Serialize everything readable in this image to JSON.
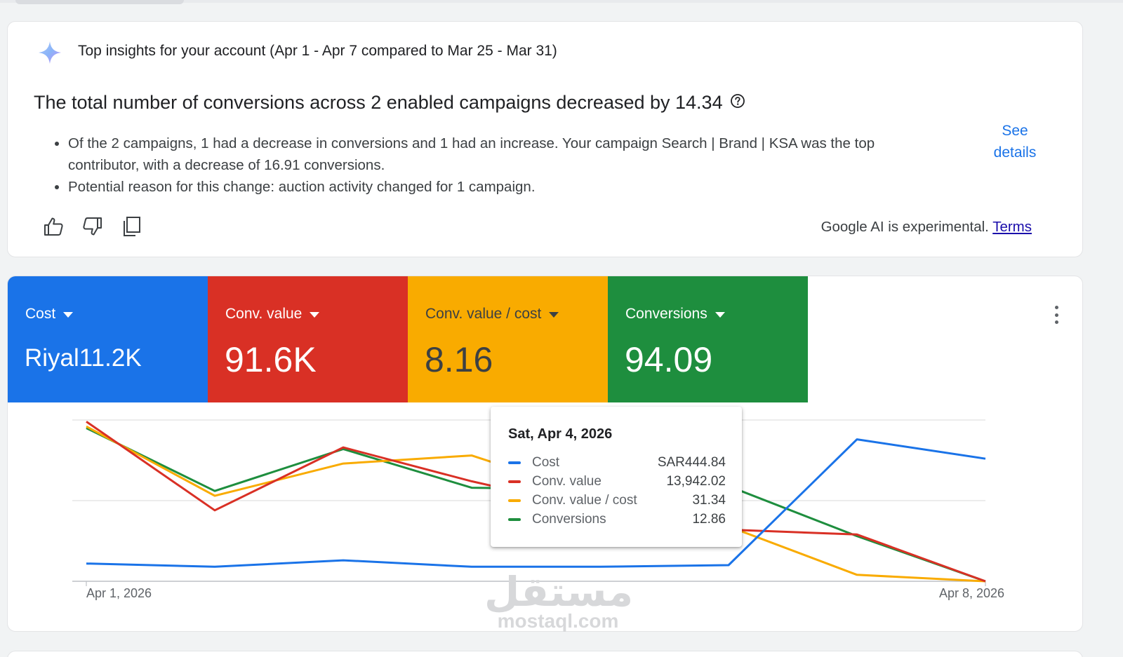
{
  "insights": {
    "header": "Top insights for your account (Apr 1 - Apr 7 compared to Mar 25 - Mar 31)",
    "title": "The total number of conversions across 2 enabled campaigns decreased by 14.34",
    "bullets": [
      "Of the 2 campaigns, 1 had a decrease in conversions and 1 had an increase. Your campaign Search | Brand | KSA was the top contributor, with a decrease of 16.91 conversions.",
      "Potential reason for this change: auction activity changed for 1 campaign."
    ],
    "see_details_line1": "See",
    "see_details_line2": "details",
    "disclaimer": "Google AI is experimental.",
    "terms_label": "Terms",
    "icons": [
      "sparkle-icon",
      "help-icon",
      "thumbs-up-icon",
      "thumbs-down-icon",
      "copy-icon"
    ]
  },
  "metrics": [
    {
      "label": "Cost",
      "value": "Riyal11.2K",
      "color": "#1a73e8",
      "text_color": "#ffffff"
    },
    {
      "label": "Conv. value",
      "value": "91.6K",
      "color": "#d93025",
      "text_color": "#ffffff"
    },
    {
      "label": "Conv. value / cost",
      "value": "8.16",
      "color": "#f9ab00",
      "text_color": "#3c4043"
    },
    {
      "label": "Conversions",
      "value": "94.09",
      "color": "#1e8e3e",
      "text_color": "#ffffff"
    }
  ],
  "tooltip": {
    "date": "Sat, Apr 4, 2026",
    "rows": [
      {
        "name": "Cost",
        "value": "SAR444.84",
        "color": "#1a73e8"
      },
      {
        "name": "Conv. value",
        "value": "13,942.02",
        "color": "#d93025"
      },
      {
        "name": "Conv. value / cost",
        "value": "31.34",
        "color": "#f9ab00"
      },
      {
        "name": "Conversions",
        "value": "12.86",
        "color": "#1e8e3e"
      }
    ]
  },
  "chart_data": {
    "type": "line",
    "x": [
      "Apr 1, 2026",
      "Apr 2, 2026",
      "Apr 3, 2026",
      "Apr 4, 2026",
      "Apr 5, 2026",
      "Apr 6, 2026",
      "Apr 7, 2026",
      "Apr 8, 2026"
    ],
    "x_tick_labels": [
      "Apr 1, 2026",
      "Apr 8, 2026"
    ],
    "grid": true,
    "normalized_per_series": true,
    "ylim": [
      0,
      100
    ],
    "series": [
      {
        "name": "Cost",
        "color": "#1a73e8",
        "values": [
          11,
          9,
          13,
          9,
          9,
          10,
          88,
          76
        ]
      },
      {
        "name": "Conv. value",
        "color": "#d93025",
        "values": [
          99,
          44,
          83,
          62,
          44,
          32,
          29,
          0
        ]
      },
      {
        "name": "Conv. value / cost",
        "color": "#f9ab00",
        "values": [
          96,
          53,
          73,
          78,
          52,
          34,
          4,
          0
        ]
      },
      {
        "name": "Conversions",
        "color": "#1e8e3e",
        "values": [
          95,
          56,
          82,
          58,
          57,
          59,
          28,
          0
        ]
      }
    ]
  },
  "watermark": {
    "arabic": "مستقل",
    "latin": "mostaql.com"
  }
}
